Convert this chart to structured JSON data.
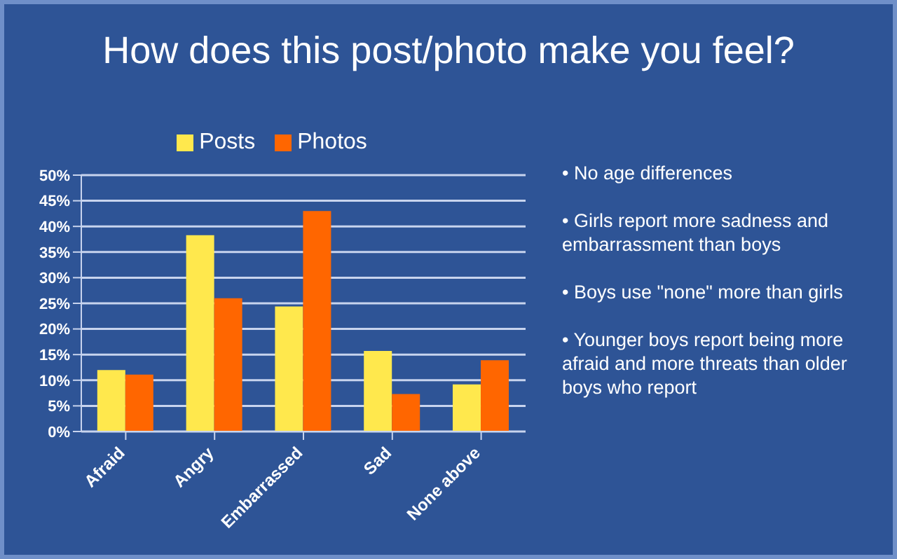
{
  "chart_data": {
    "type": "bar",
    "title": "How does this post/photo make you feel?",
    "categories": [
      "Afraid",
      "Angry",
      "Embarrassed",
      "Sad",
      "None above"
    ],
    "series": [
      {
        "name": "Posts",
        "color": "#ffe84d",
        "values": [
          12,
          38.3,
          24.4,
          15.7,
          9.2
        ]
      },
      {
        "name": "Photos",
        "color": "#ff6600",
        "values": [
          11.1,
          26,
          43,
          7.3,
          13.9
        ]
      }
    ],
    "ylim": [
      0,
      50
    ],
    "yticks": [
      {
        "value": 0,
        "label": "0%"
      },
      {
        "value": 5,
        "label": "5%"
      },
      {
        "value": 10,
        "label": "10%"
      },
      {
        "value": 15,
        "label": "15%"
      },
      {
        "value": 20,
        "label": "20%"
      },
      {
        "value": 25,
        "label": "25%"
      },
      {
        "value": 30,
        "label": "30%"
      },
      {
        "value": 35,
        "label": "35%"
      },
      {
        "value": 40,
        "label": "40%"
      },
      {
        "value": 45,
        "label": "45%"
      },
      {
        "value": 50,
        "label": "50%"
      }
    ],
    "grid": "y",
    "legend": "top",
    "annotations": [
      "• No age differences",
      "• Girls report more sadness and embarrassment than boys",
      "• Boys use \"none\" more than girls",
      "• Younger  boys report being more afraid and more threats than older boys who report"
    ]
  }
}
